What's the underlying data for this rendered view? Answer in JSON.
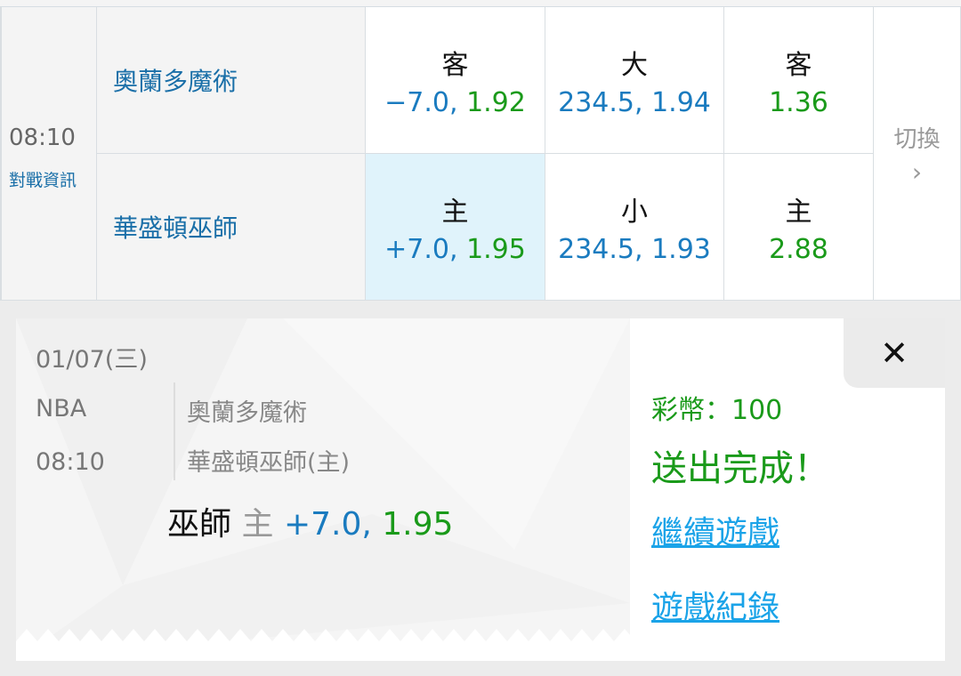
{
  "match": {
    "time": "08:10",
    "info_link": "對戰資訊",
    "away_team": "奧蘭多魔術",
    "home_team": "華盛頓巫師",
    "switch_label": "切換",
    "switch_icon": "chevron-right-icon",
    "odds": {
      "away": [
        {
          "label": "客",
          "line": "−7.0, ",
          "price": "1.92"
        },
        {
          "label": "大",
          "line": "234.5, ",
          "price": "1.94"
        },
        {
          "label": "客",
          "line": "",
          "price": "1.36"
        }
      ],
      "home": [
        {
          "label": "主",
          "line": "+7.0, ",
          "price": "1.95",
          "selected": true
        },
        {
          "label": "小",
          "line": "234.5, ",
          "price": "1.93"
        },
        {
          "label": "主",
          "line": "",
          "price": "2.88"
        }
      ]
    }
  },
  "ticket": {
    "date": "01/07(三)",
    "league": "NBA",
    "time": "08:10",
    "away_team": "奧蘭多魔術",
    "home_team": "華盛頓巫師(主)",
    "pick_team": "巫師",
    "pick_side": "主",
    "pick_line": "+7.0, ",
    "pick_price": "1.95"
  },
  "result": {
    "coins": "彩幣：100",
    "status": "送出完成！",
    "continue_link": "繼續遊戲",
    "history_link": "遊戲紀錄",
    "close_icon": "close-icon"
  },
  "colors": {
    "blue": "#1a7bbf",
    "green": "#1a9a1a",
    "link": "#1aa3e8",
    "selected_bg": "#e0f3fb"
  }
}
